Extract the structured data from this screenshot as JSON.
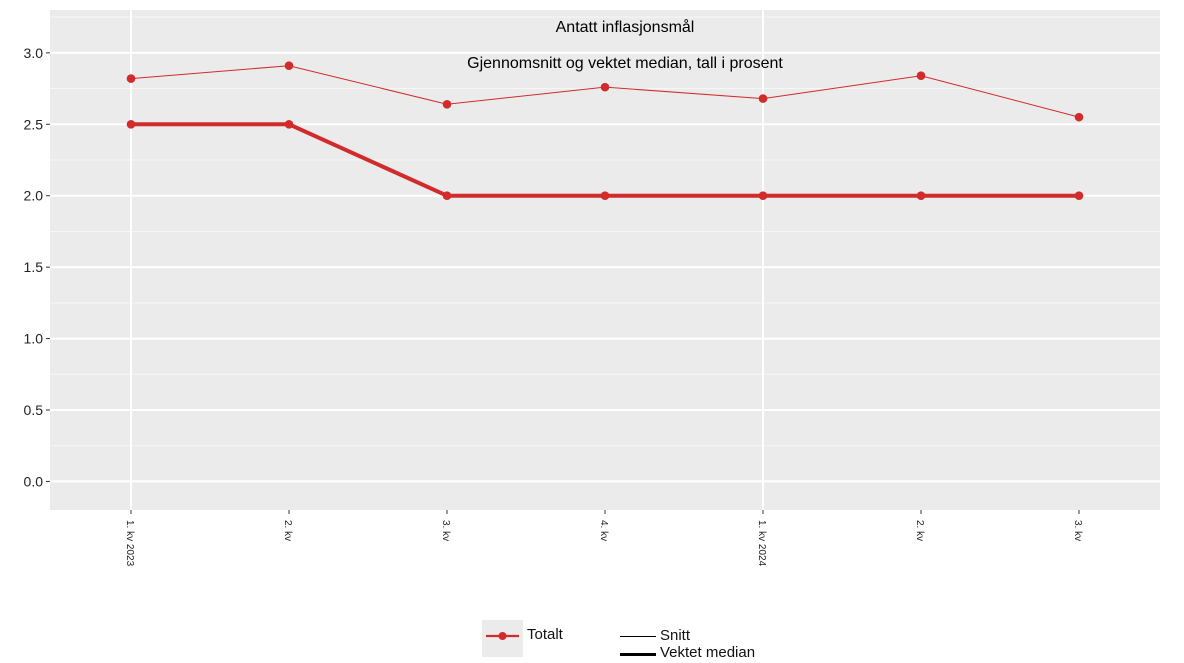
{
  "chart_data": {
    "type": "line",
    "title": "Antatt inflasjonsmål",
    "subtitle": "Gjennomsnitt og vektet median, tall i prosent",
    "categories": [
      "1. kv 2023",
      "2. kv",
      "3. kv",
      "4. kv",
      "1. kv 2024",
      "2. kv",
      "3. kv"
    ],
    "series": [
      {
        "name": "Snitt",
        "group": "Totalt",
        "style": "thin",
        "values": [
          2.82,
          2.91,
          2.64,
          2.76,
          2.68,
          2.84,
          2.55
        ]
      },
      {
        "name": "Vektet median",
        "group": "Totalt",
        "style": "thick",
        "values": [
          2.5,
          2.5,
          2.0,
          2.0,
          2.0,
          2.0,
          2.0
        ]
      }
    ],
    "ylim": [
      -0.2,
      3.3
    ],
    "yticks": [
      0.0,
      0.5,
      1.0,
      1.5,
      2.0,
      2.5,
      3.0
    ],
    "ytick_labels": [
      "0.0",
      "0.5",
      "1.0",
      "1.5",
      "2.0",
      "2.5",
      "3.0"
    ],
    "grid": true,
    "legend_position": "bottom",
    "colors": {
      "series": "#d12b2b",
      "panel": "#ebebeb",
      "grid": "#ffffff"
    }
  },
  "legend": {
    "color_title": "Totalt",
    "linetype_labels": [
      "Snitt",
      "Vektet median"
    ]
  }
}
